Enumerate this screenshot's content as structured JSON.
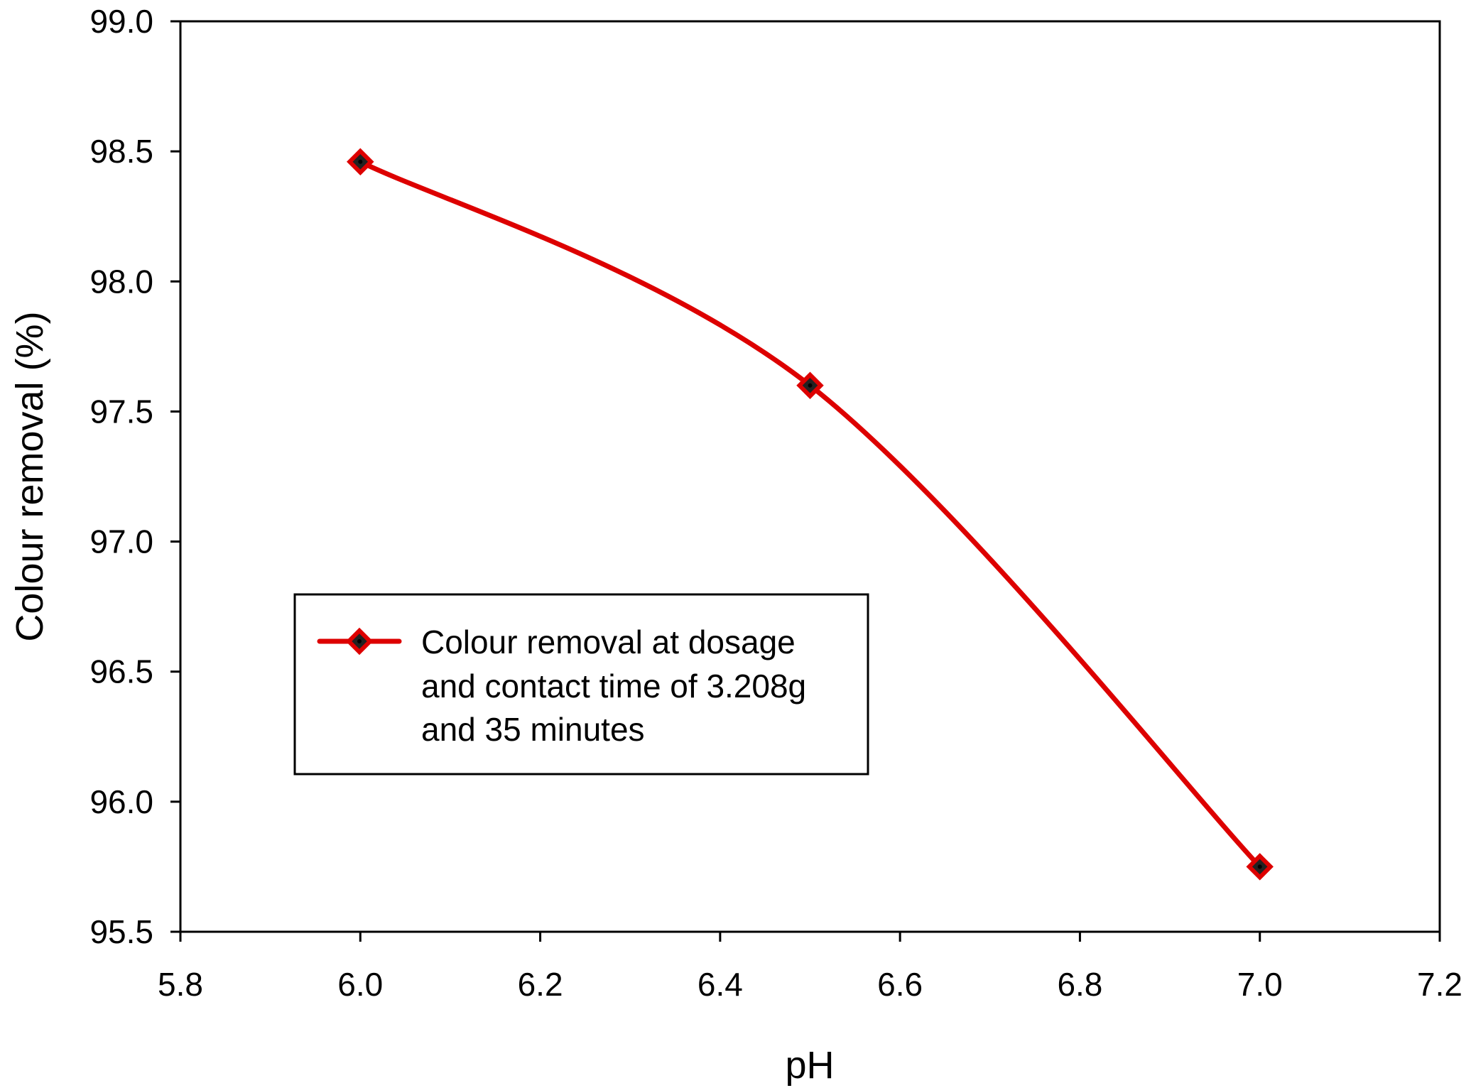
{
  "chart_data": {
    "type": "line",
    "title": "",
    "xlabel": "pH",
    "ylabel": "Colour removal (%)",
    "xlim": [
      5.8,
      7.2
    ],
    "ylim": [
      95.5,
      99.0
    ],
    "xticks": [
      "5.8",
      "6.0",
      "6.2",
      "6.4",
      "6.6",
      "6.8",
      "7.0",
      "7.2"
    ],
    "yticks": [
      "95.5",
      "96.0",
      "96.5",
      "97.0",
      "97.5",
      "98.0",
      "98.5",
      "99.0"
    ],
    "grid": false,
    "legend_position": "center-left",
    "series": [
      {
        "name": "Colour removal at dosage and contact time of  3.208g and 35 minutes",
        "legend_lines": [
          "Colour removal at dosage",
          "and contact time of  3.208g",
          "and 35 minutes"
        ],
        "color": "#dd0000",
        "marker": "diamond",
        "smooth": true,
        "x": [
          6.0,
          6.5,
          7.0
        ],
        "y": [
          98.46,
          97.6,
          95.75
        ]
      }
    ]
  }
}
